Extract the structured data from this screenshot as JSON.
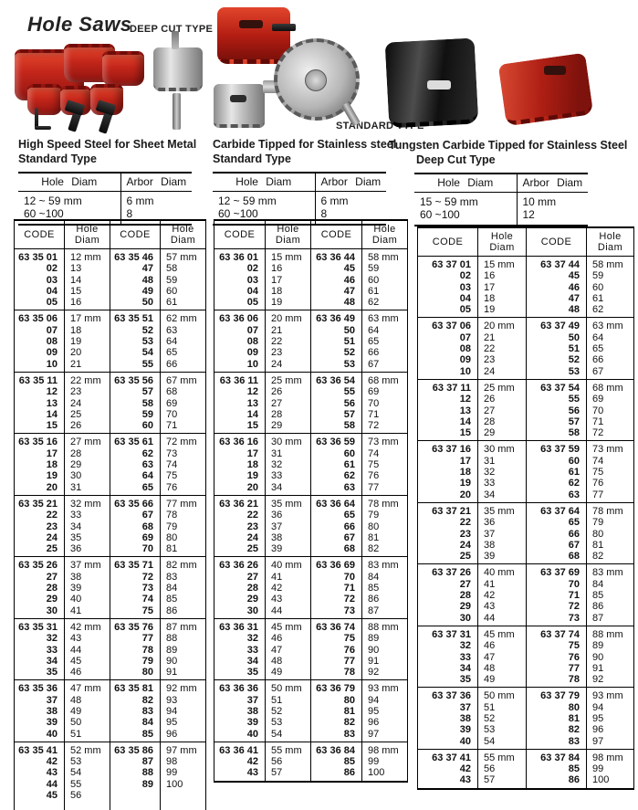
{
  "header": {
    "title": "Hole Saws",
    "deep_cut_label": "DEEP CUT TYPE",
    "standard_label": "STANDARD TYPE"
  },
  "spec_sections": [
    {
      "title_line1": "High Speed Steel for Sheet Metal",
      "title_line2": "Standard Type",
      "col_hole": "Hole Diam",
      "col_arbor": "Arbor Diam",
      "rows": [
        [
          "12 ~ 59 mm",
          "6 mm"
        ],
        [
          "60 ~100",
          "8"
        ]
      ]
    },
    {
      "title_line1": "Carbide Tipped for Stainless steel",
      "title_line2": "Standard Type",
      "col_hole": "Hole Diam",
      "col_arbor": "Arbor Diam",
      "rows": [
        [
          "12 ~ 59 mm",
          "6 mm"
        ],
        [
          "60 ~100",
          "8"
        ]
      ]
    },
    {
      "title_line1": "Tungsten Carbide Tipped for Stainless Steel",
      "title_line2": "Deep Cut Type",
      "col_hole": "Hole Diam",
      "col_arbor": "Arbor Diam",
      "rows": [
        [
          "15 ~ 59 mm",
          "10 mm"
        ],
        [
          "60 ~100",
          "12"
        ]
      ]
    }
  ],
  "main_table": {
    "col_code": "CODE",
    "col_hole": "Hole Diam",
    "subtables": [
      {
        "groups": [
          {
            "a_codes": [
              "63 35 01",
              "02",
              "03",
              "04",
              "05"
            ],
            "a_diams": [
              "12 mm",
              "13",
              "14",
              "15",
              "16"
            ],
            "b_codes": [
              "63 35 46",
              "47",
              "48",
              "49",
              "50"
            ],
            "b_diams": [
              "57 mm",
              "58",
              "59",
              "60",
              "61"
            ]
          },
          {
            "a_codes": [
              "63 35 06",
              "07",
              "08",
              "09",
              "10"
            ],
            "a_diams": [
              "17 mm",
              "18",
              "19",
              "20",
              "21"
            ],
            "b_codes": [
              "63 35 51",
              "52",
              "53",
              "54",
              "55"
            ],
            "b_diams": [
              "62 mm",
              "63",
              "64",
              "65",
              "66"
            ]
          },
          {
            "a_codes": [
              "63 35 11",
              "12",
              "13",
              "14",
              "15"
            ],
            "a_diams": [
              "22 mm",
              "23",
              "24",
              "25",
              "26"
            ],
            "b_codes": [
              "63 35 56",
              "57",
              "58",
              "59",
              "60"
            ],
            "b_diams": [
              "67 mm",
              "68",
              "69",
              "70",
              "71"
            ]
          },
          {
            "a_codes": [
              "63 35 16",
              "17",
              "18",
              "19",
              "20"
            ],
            "a_diams": [
              "27 mm",
              "28",
              "29",
              "30",
              "31"
            ],
            "b_codes": [
              "63 35 61",
              "62",
              "63",
              "64",
              "65"
            ],
            "b_diams": [
              "72 mm",
              "73",
              "74",
              "75",
              "76"
            ]
          },
          {
            "a_codes": [
              "63 35 21",
              "22",
              "23",
              "24",
              "25"
            ],
            "a_diams": [
              "32 mm",
              "33",
              "34",
              "35",
              "36"
            ],
            "b_codes": [
              "63 35 66",
              "67",
              "68",
              "69",
              "70"
            ],
            "b_diams": [
              "77 mm",
              "78",
              "79",
              "80",
              "81"
            ]
          },
          {
            "a_codes": [
              "63 35 26",
              "27",
              "28",
              "29",
              "30"
            ],
            "a_diams": [
              "37 mm",
              "38",
              "39",
              "40",
              "41"
            ],
            "b_codes": [
              "63 35 71",
              "72",
              "73",
              "74",
              "75"
            ],
            "b_diams": [
              "82 mm",
              "83",
              "84",
              "85",
              "86"
            ]
          },
          {
            "a_codes": [
              "63 35 31",
              "32",
              "33",
              "34",
              "35"
            ],
            "a_diams": [
              "42 mm",
              "43",
              "44",
              "45",
              "46"
            ],
            "b_codes": [
              "63 35 76",
              "77",
              "78",
              "79",
              "80"
            ],
            "b_diams": [
              "87 mm",
              "88",
              "89",
              "90",
              "91"
            ]
          },
          {
            "a_codes": [
              "63 35 36",
              "37",
              "38",
              "39",
              "40"
            ],
            "a_diams": [
              "47 mm",
              "48",
              "49",
              "50",
              "51"
            ],
            "b_codes": [
              "63 35 81",
              "82",
              "83",
              "84",
              "85"
            ],
            "b_diams": [
              "92 mm",
              "93",
              "94",
              "95",
              "96"
            ]
          },
          {
            "a_codes": [
              "63 35 41",
              "42",
              "43",
              "44",
              "45"
            ],
            "a_diams": [
              "52 mm",
              "53",
              "54",
              "55",
              "56"
            ],
            "b_codes": [
              "63 35 86",
              "87",
              "88",
              "89"
            ],
            "b_diams": [
              "97 mm",
              "98",
              "99",
              "100"
            ]
          }
        ]
      },
      {
        "groups": [
          {
            "a_codes": [
              "63 36 01",
              "02",
              "03",
              "04",
              "05"
            ],
            "a_diams": [
              "15 mm",
              "16",
              "17",
              "18",
              "19"
            ],
            "b_codes": [
              "63 36 44",
              "45",
              "46",
              "47",
              "48"
            ],
            "b_diams": [
              "58 mm",
              "59",
              "60",
              "61",
              "62"
            ]
          },
          {
            "a_codes": [
              "63 36 06",
              "07",
              "08",
              "09",
              "10"
            ],
            "a_diams": [
              "20 mm",
              "21",
              "22",
              "23",
              "24"
            ],
            "b_codes": [
              "63 36 49",
              "50",
              "51",
              "52",
              "53"
            ],
            "b_diams": [
              "63 mm",
              "64",
              "65",
              "66",
              "67"
            ]
          },
          {
            "a_codes": [
              "63 36 11",
              "12",
              "13",
              "14",
              "15"
            ],
            "a_diams": [
              "25 mm",
              "26",
              "27",
              "28",
              "29"
            ],
            "b_codes": [
              "63 36 54",
              "55",
              "56",
              "57",
              "58"
            ],
            "b_diams": [
              "68 mm",
              "69",
              "70",
              "71",
              "72"
            ]
          },
          {
            "a_codes": [
              "63 36 16",
              "17",
              "18",
              "19",
              "20"
            ],
            "a_diams": [
              "30 mm",
              "31",
              "32",
              "33",
              "34"
            ],
            "b_codes": [
              "63 36 59",
              "60",
              "61",
              "62",
              "63"
            ],
            "b_diams": [
              "73 mm",
              "74",
              "75",
              "76",
              "77"
            ]
          },
          {
            "a_codes": [
              "63 36 21",
              "22",
              "23",
              "24",
              "25"
            ],
            "a_diams": [
              "35 mm",
              "36",
              "37",
              "38",
              "39"
            ],
            "b_codes": [
              "63 36 64",
              "65",
              "66",
              "67",
              "68"
            ],
            "b_diams": [
              "78 mm",
              "79",
              "80",
              "81",
              "82"
            ]
          },
          {
            "a_codes": [
              "63 36 26",
              "27",
              "28",
              "29",
              "30"
            ],
            "a_diams": [
              "40 mm",
              "41",
              "42",
              "43",
              "44"
            ],
            "b_codes": [
              "63 36 69",
              "70",
              "71",
              "72",
              "73"
            ],
            "b_diams": [
              "83 mm",
              "84",
              "85",
              "86",
              "87"
            ]
          },
          {
            "a_codes": [
              "63 36 31",
              "32",
              "33",
              "34",
              "35"
            ],
            "a_diams": [
              "45 mm",
              "46",
              "47",
              "48",
              "49"
            ],
            "b_codes": [
              "63 36 74",
              "75",
              "76",
              "77",
              "78"
            ],
            "b_diams": [
              "88 mm",
              "89",
              "90",
              "91",
              "92"
            ]
          },
          {
            "a_codes": [
              "63 36 36",
              "37",
              "38",
              "39",
              "40"
            ],
            "a_diams": [
              "50 mm",
              "51",
              "52",
              "53",
              "54"
            ],
            "b_codes": [
              "63 36 79",
              "80",
              "81",
              "82",
              "83"
            ],
            "b_diams": [
              "93 mm",
              "94",
              "95",
              "96",
              "97"
            ]
          },
          {
            "a_codes": [
              "63 36 41",
              "42",
              "43"
            ],
            "a_diams": [
              "55 mm",
              "56",
              "57"
            ],
            "b_codes": [
              "63 36 84",
              "85",
              "86"
            ],
            "b_diams": [
              "98 mm",
              "99",
              "100"
            ]
          }
        ]
      },
      {
        "groups": [
          {
            "a_codes": [
              "63 37 01",
              "02",
              "03",
              "04",
              "05"
            ],
            "a_diams": [
              "15 mm",
              "16",
              "17",
              "18",
              "19"
            ],
            "b_codes": [
              "63 37 44",
              "45",
              "46",
              "47",
              "48"
            ],
            "b_diams": [
              "58 mm",
              "59",
              "60",
              "61",
              "62"
            ]
          },
          {
            "a_codes": [
              "63 37 06",
              "07",
              "08",
              "09",
              "10"
            ],
            "a_diams": [
              "20 mm",
              "21",
              "22",
              "23",
              "24"
            ],
            "b_codes": [
              "63 37 49",
              "50",
              "51",
              "52",
              "53"
            ],
            "b_diams": [
              "63 mm",
              "64",
              "65",
              "66",
              "67"
            ]
          },
          {
            "a_codes": [
              "63 37 11",
              "12",
              "13",
              "14",
              "15"
            ],
            "a_diams": [
              "25 mm",
              "26",
              "27",
              "28",
              "29"
            ],
            "b_codes": [
              "63 37 54",
              "55",
              "56",
              "57",
              "58"
            ],
            "b_diams": [
              "68 mm",
              "69",
              "70",
              "71",
              "72"
            ]
          },
          {
            "a_codes": [
              "63 37 16",
              "17",
              "18",
              "19",
              "20"
            ],
            "a_diams": [
              "30 mm",
              "31",
              "32",
              "33",
              "34"
            ],
            "b_codes": [
              "63 37 59",
              "60",
              "61",
              "62",
              "63"
            ],
            "b_diams": [
              "73 mm",
              "74",
              "75",
              "76",
              "77"
            ]
          },
          {
            "a_codes": [
              "63 37 21",
              "22",
              "23",
              "24",
              "25"
            ],
            "a_diams": [
              "35 mm",
              "36",
              "37",
              "38",
              "39"
            ],
            "b_codes": [
              "63 37 64",
              "65",
              "66",
              "67",
              "68"
            ],
            "b_diams": [
              "78 mm",
              "79",
              "80",
              "81",
              "82"
            ]
          },
          {
            "a_codes": [
              "63 37 26",
              "27",
              "28",
              "29",
              "30"
            ],
            "a_diams": [
              "40 mm",
              "41",
              "42",
              "43",
              "44"
            ],
            "b_codes": [
              "63 37 69",
              "70",
              "71",
              "72",
              "73"
            ],
            "b_diams": [
              "83 mm",
              "84",
              "85",
              "86",
              "87"
            ]
          },
          {
            "a_codes": [
              "63 37 31",
              "32",
              "33",
              "34",
              "35"
            ],
            "a_diams": [
              "45 mm",
              "46",
              "47",
              "48",
              "49"
            ],
            "b_codes": [
              "63 37 74",
              "75",
              "76",
              "77",
              "78"
            ],
            "b_diams": [
              "88 mm",
              "89",
              "90",
              "91",
              "92"
            ]
          },
          {
            "a_codes": [
              "63 37 36",
              "37",
              "38",
              "39",
              "40"
            ],
            "a_diams": [
              "50 mm",
              "51",
              "52",
              "53",
              "54"
            ],
            "b_codes": [
              "63 37 79",
              "80",
              "81",
              "82",
              "83"
            ],
            "b_diams": [
              "93 mm",
              "94",
              "95",
              "96",
              "97"
            ]
          },
          {
            "a_codes": [
              "63 37 41",
              "42",
              "43"
            ],
            "a_diams": [
              "55 mm",
              "56",
              "57"
            ],
            "b_codes": [
              "63 37 84",
              "85",
              "86"
            ],
            "b_diams": [
              "98 mm",
              "99",
              "100"
            ]
          }
        ]
      }
    ]
  }
}
